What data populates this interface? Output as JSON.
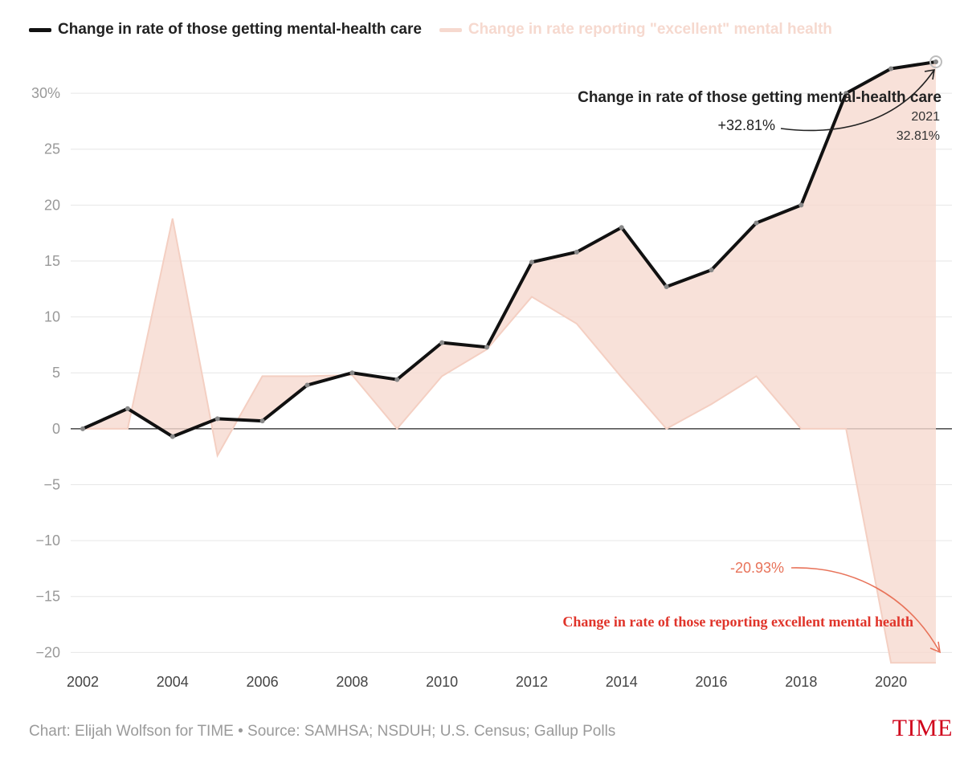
{
  "legend": {
    "series1_label": "Change in rate of those getting mental-health care",
    "series2_label": "Change in rate reporting \"excellent\" mental health"
  },
  "chart_data": {
    "type": "line",
    "x": [
      2002,
      2003,
      2004,
      2005,
      2006,
      2007,
      2008,
      2009,
      2010,
      2011,
      2012,
      2013,
      2014,
      2015,
      2016,
      2017,
      2018,
      2019,
      2020,
      2021
    ],
    "series": [
      {
        "name": "Change in rate of those getting mental-health care",
        "color": "#111111",
        "values": [
          0,
          1.8,
          -0.7,
          0.9,
          0.7,
          3.9,
          5.0,
          4.4,
          7.7,
          7.3,
          14.9,
          15.8,
          18.0,
          12.7,
          14.2,
          18.4,
          20.0,
          30.0,
          32.2,
          32.81
        ]
      },
      {
        "name": "Change in rate reporting \"excellent\" mental health",
        "color": "#f4cfc2",
        "values": [
          0,
          0,
          18.8,
          -2.4,
          4.7,
          4.7,
          4.8,
          0,
          4.7,
          7.1,
          11.8,
          9.4,
          4.6,
          0,
          2.2,
          4.7,
          0,
          0,
          -20.93,
          -20.93
        ]
      }
    ],
    "xticks": [
      "2002",
      "2004",
      "2006",
      "2008",
      "2010",
      "2012",
      "2014",
      "2016",
      "2018",
      "2020"
    ],
    "yticks": [
      "30%",
      "25",
      "20",
      "15",
      "10",
      "5",
      "0",
      "−5",
      "−10",
      "−15",
      "−20"
    ],
    "ytick_values": [
      30,
      25,
      20,
      15,
      10,
      5,
      0,
      -5,
      -10,
      -15,
      -20
    ],
    "xlim": [
      2002,
      2021
    ],
    "ylim": [
      -21.7,
      32.81
    ],
    "grid": true,
    "legend_position": "top-left",
    "annotations": {
      "care_title": "Change in rate of those getting mental-health care",
      "care_year": "2021",
      "care_value": "32.81%",
      "care_callout": "+32.81%",
      "excellent_callout": "-20.93%",
      "excellent_title": "Change in rate of those reporting excellent mental health"
    }
  },
  "footer": {
    "credit": "Chart: Elijah Wolfson for TIME • Source: SAMHSA; NSDUH; U.S. Census; Gallup Polls",
    "logo": "TIME"
  }
}
